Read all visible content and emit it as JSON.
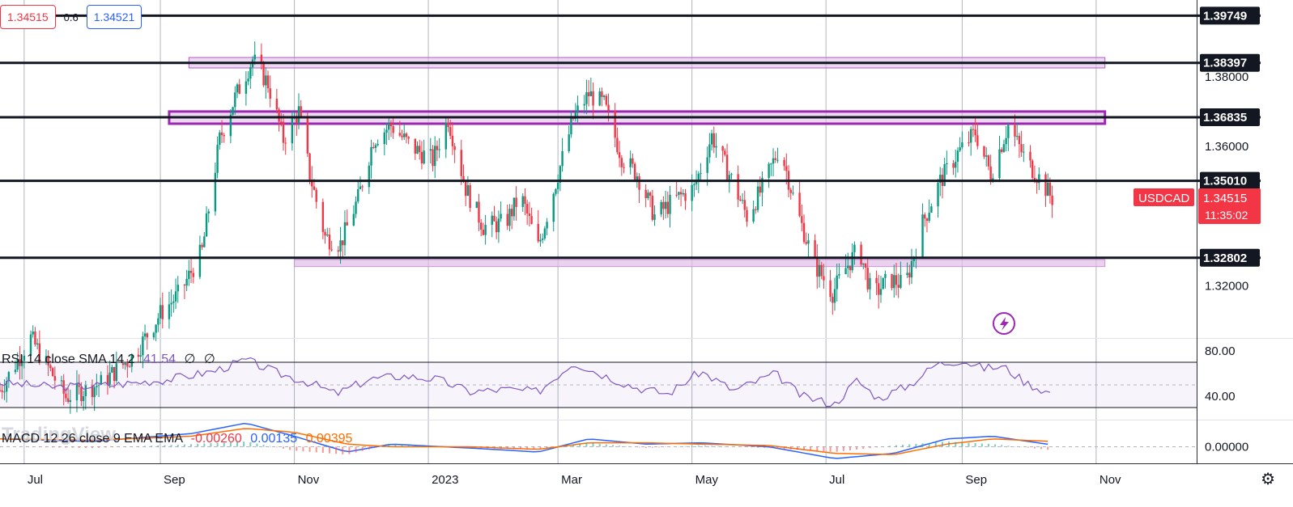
{
  "header": {
    "bid": "1.34515",
    "spread": "0.6",
    "ask": "1.34521"
  },
  "symbol": {
    "name": "USDCAD",
    "price": "1.34515",
    "countdown": "11:35:02",
    "color": "#f23645"
  },
  "indicators": {
    "rsi": {
      "label": "RSI 14 close SMA 14 2",
      "value": "41.54",
      "extra1": "∅",
      "extra2": "∅",
      "color": "#7e57c2"
    },
    "macd": {
      "label": "MACD 12 26 close 9 EMA EMA",
      "hist": "-0.00260",
      "macd": "0.00135",
      "signal": "0.00395"
    }
  },
  "branding": "TradingView",
  "icons": {
    "settings": "gear-icon",
    "flash": "flash-icon"
  },
  "chart_data": {
    "type": "candlestick",
    "symbol": "USDCAD",
    "x_ticks": [
      "Jul",
      "Sep",
      "Nov",
      "2023",
      "Mar",
      "May",
      "Jul",
      "Sep",
      "Nov"
    ],
    "y_ticks": [
      "1.32000",
      "1.36000",
      "1.38000"
    ],
    "y_range": [
      1.305,
      1.402
    ],
    "levels": [
      {
        "value": 1.39749,
        "label": "1.39749"
      },
      {
        "value": 1.38397,
        "label": "1.38397"
      },
      {
        "value": 1.36835,
        "label": "1.36835"
      },
      {
        "value": 1.3501,
        "label": "1.35010"
      },
      {
        "value": 1.32802,
        "label": "1.32802"
      }
    ],
    "zones": [
      {
        "from": 1.3825,
        "to": 1.3855,
        "start": "2022-09-14",
        "end": "2023-11-05"
      },
      {
        "from": 1.3665,
        "to": 1.37,
        "start": "2022-09-05",
        "end": "2023-11-05"
      },
      {
        "from": 1.3255,
        "to": 1.3275,
        "start": "2022-11-01",
        "end": "2023-11-05"
      }
    ],
    "close_path": [
      {
        "date": "2022-06-20",
        "close": 1.29
      },
      {
        "date": "2022-07-04",
        "close": 1.305
      },
      {
        "date": "2022-07-20",
        "close": 1.288
      },
      {
        "date": "2022-08-05",
        "close": 1.292
      },
      {
        "date": "2022-08-20",
        "close": 1.3
      },
      {
        "date": "2022-09-01",
        "close": 1.312
      },
      {
        "date": "2022-09-10",
        "close": 1.318
      },
      {
        "date": "2022-09-20",
        "close": 1.33
      },
      {
        "date": "2022-09-28",
        "close": 1.362
      },
      {
        "date": "2022-10-05",
        "close": 1.374
      },
      {
        "date": "2022-10-13",
        "close": 1.385
      },
      {
        "date": "2022-10-20",
        "close": 1.378
      },
      {
        "date": "2022-10-27",
        "close": 1.362
      },
      {
        "date": "2022-11-03",
        "close": 1.37
      },
      {
        "date": "2022-11-08",
        "close": 1.352
      },
      {
        "date": "2022-11-15",
        "close": 1.334
      },
      {
        "date": "2022-11-22",
        "close": 1.332
      },
      {
        "date": "2022-11-30",
        "close": 1.345
      },
      {
        "date": "2022-12-07",
        "close": 1.362
      },
      {
        "date": "2022-12-15",
        "close": 1.366
      },
      {
        "date": "2022-12-24",
        "close": 1.36
      },
      {
        "date": "2023-01-03",
        "close": 1.356
      },
      {
        "date": "2023-01-10",
        "close": 1.368
      },
      {
        "date": "2023-01-18",
        "close": 1.348
      },
      {
        "date": "2023-01-26",
        "close": 1.337
      },
      {
        "date": "2023-02-05",
        "close": 1.338
      },
      {
        "date": "2023-02-12",
        "close": 1.346
      },
      {
        "date": "2023-02-20",
        "close": 1.331
      },
      {
        "date": "2023-03-01",
        "close": 1.352
      },
      {
        "date": "2023-03-08",
        "close": 1.368
      },
      {
        "date": "2023-03-15",
        "close": 1.375
      },
      {
        "date": "2023-03-22",
        "close": 1.372
      },
      {
        "date": "2023-03-30",
        "close": 1.357
      },
      {
        "date": "2023-04-06",
        "close": 1.352
      },
      {
        "date": "2023-04-14",
        "close": 1.34
      },
      {
        "date": "2023-04-24",
        "close": 1.345
      },
      {
        "date": "2023-05-02",
        "close": 1.348
      },
      {
        "date": "2023-05-10",
        "close": 1.363
      },
      {
        "date": "2023-05-18",
        "close": 1.352
      },
      {
        "date": "2023-05-26",
        "close": 1.34
      },
      {
        "date": "2023-06-02",
        "close": 1.348
      },
      {
        "date": "2023-06-10",
        "close": 1.36
      },
      {
        "date": "2023-06-18",
        "close": 1.341
      },
      {
        "date": "2023-06-26",
        "close": 1.326
      },
      {
        "date": "2023-07-04",
        "close": 1.318
      },
      {
        "date": "2023-07-10",
        "close": 1.325
      },
      {
        "date": "2023-07-16",
        "close": 1.331
      },
      {
        "date": "2023-07-22",
        "close": 1.317
      },
      {
        "date": "2023-07-30",
        "close": 1.322
      },
      {
        "date": "2023-08-06",
        "close": 1.32
      },
      {
        "date": "2023-08-14",
        "close": 1.338
      },
      {
        "date": "2023-08-22",
        "close": 1.35
      },
      {
        "date": "2023-08-30",
        "close": 1.358
      },
      {
        "date": "2023-09-07",
        "close": 1.364
      },
      {
        "date": "2023-09-14",
        "close": 1.352
      },
      {
        "date": "2023-09-22",
        "close": 1.366
      },
      {
        "date": "2023-09-30",
        "close": 1.356
      },
      {
        "date": "2023-10-06",
        "close": 1.351
      },
      {
        "date": "2023-10-12",
        "close": 1.345
      }
    ],
    "rsi": {
      "y_ticks": [
        "80.00",
        "40.00"
      ],
      "upper": 70,
      "lower": 30,
      "mid": 50,
      "range": [
        20,
        90
      ],
      "values": [
        {
          "date": "2022-06-20",
          "v": 52
        },
        {
          "date": "2022-07-15",
          "v": 48
        },
        {
          "date": "2022-08-10",
          "v": 50
        },
        {
          "date": "2022-09-05",
          "v": 55
        },
        {
          "date": "2022-09-25",
          "v": 62
        },
        {
          "date": "2022-10-10",
          "v": 72
        },
        {
          "date": "2022-10-25",
          "v": 60
        },
        {
          "date": "2022-11-08",
          "v": 52
        },
        {
          "date": "2022-11-20",
          "v": 42
        },
        {
          "date": "2022-12-05",
          "v": 55
        },
        {
          "date": "2022-12-20",
          "v": 58
        },
        {
          "date": "2023-01-05",
          "v": 55
        },
        {
          "date": "2023-01-20",
          "v": 44
        },
        {
          "date": "2023-02-05",
          "v": 46
        },
        {
          "date": "2023-02-20",
          "v": 44
        },
        {
          "date": "2023-03-08",
          "v": 70
        },
        {
          "date": "2023-03-20",
          "v": 60
        },
        {
          "date": "2023-04-05",
          "v": 48
        },
        {
          "date": "2023-04-20",
          "v": 42
        },
        {
          "date": "2023-05-05",
          "v": 62
        },
        {
          "date": "2023-05-20",
          "v": 45
        },
        {
          "date": "2023-06-08",
          "v": 60
        },
        {
          "date": "2023-06-20",
          "v": 40
        },
        {
          "date": "2023-07-05",
          "v": 33
        },
        {
          "date": "2023-07-15",
          "v": 54
        },
        {
          "date": "2023-07-25",
          "v": 38
        },
        {
          "date": "2023-08-08",
          "v": 50
        },
        {
          "date": "2023-08-20",
          "v": 68
        },
        {
          "date": "2023-09-01",
          "v": 72
        },
        {
          "date": "2023-09-10",
          "v": 65
        },
        {
          "date": "2023-09-20",
          "v": 66
        },
        {
          "date": "2023-09-30",
          "v": 52
        },
        {
          "date": "2023-10-12",
          "v": 42
        }
      ]
    },
    "macd": {
      "y_ticks": [
        "0.00000"
      ],
      "range": [
        -0.012,
        0.02
      ],
      "macd_line": [
        {
          "date": "2022-06-20",
          "v": 0.006
        },
        {
          "date": "2022-08-01",
          "v": 0.004
        },
        {
          "date": "2022-09-15",
          "v": 0.01
        },
        {
          "date": "2022-10-10",
          "v": 0.018
        },
        {
          "date": "2022-11-01",
          "v": 0.008
        },
        {
          "date": "2022-11-25",
          "v": -0.004
        },
        {
          "date": "2022-12-15",
          "v": 0.002
        },
        {
          "date": "2023-01-20",
          "v": -0.001
        },
        {
          "date": "2023-02-20",
          "v": -0.004
        },
        {
          "date": "2023-03-15",
          "v": 0.006
        },
        {
          "date": "2023-04-10",
          "v": 0.002
        },
        {
          "date": "2023-05-05",
          "v": 0.003
        },
        {
          "date": "2023-06-05",
          "v": 0.0
        },
        {
          "date": "2023-07-05",
          "v": -0.009
        },
        {
          "date": "2023-08-01",
          "v": -0.005
        },
        {
          "date": "2023-08-25",
          "v": 0.006
        },
        {
          "date": "2023-09-15",
          "v": 0.008
        },
        {
          "date": "2023-10-12",
          "v": 0.0014
        }
      ],
      "signal_line": [
        {
          "date": "2022-06-20",
          "v": 0.006
        },
        {
          "date": "2022-08-01",
          "v": 0.005
        },
        {
          "date": "2022-09-15",
          "v": 0.008
        },
        {
          "date": "2022-10-10",
          "v": 0.014
        },
        {
          "date": "2022-11-01",
          "v": 0.011
        },
        {
          "date": "2022-11-25",
          "v": 0.002
        },
        {
          "date": "2022-12-15",
          "v": 0.0
        },
        {
          "date": "2023-01-20",
          "v": 0.0
        },
        {
          "date": "2023-02-20",
          "v": -0.002
        },
        {
          "date": "2023-03-15",
          "v": 0.003
        },
        {
          "date": "2023-04-10",
          "v": 0.003
        },
        {
          "date": "2023-05-05",
          "v": 0.002
        },
        {
          "date": "2023-06-05",
          "v": 0.001
        },
        {
          "date": "2023-07-05",
          "v": -0.005
        },
        {
          "date": "2023-08-01",
          "v": -0.006
        },
        {
          "date": "2023-08-25",
          "v": 0.002
        },
        {
          "date": "2023-09-15",
          "v": 0.006
        },
        {
          "date": "2023-10-12",
          "v": 0.004
        }
      ]
    }
  }
}
